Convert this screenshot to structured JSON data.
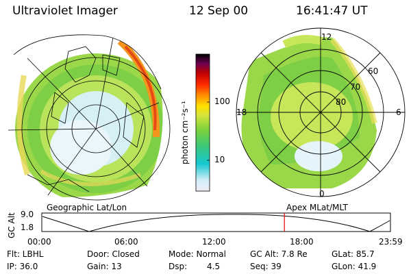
{
  "header": {
    "instrument": "Ultraviolet Imager",
    "date": "12 Sep 00",
    "time": "16:41:47 UT"
  },
  "colorbar": {
    "label": "photon cm⁻²s⁻¹",
    "ticks": [
      "100",
      "10"
    ],
    "colors": [
      "#e6e6f0",
      "#d8f0f8",
      "#00c8d0",
      "#3cc878",
      "#7ad23c",
      "#c8e63c",
      "#ffe600",
      "#ff8c00",
      "#ff2800",
      "#c80000",
      "#780050",
      "#000000"
    ]
  },
  "left_map": {
    "caption": "Geographic Lat/Lon"
  },
  "right_map": {
    "caption": "Apex  MLat/MLT",
    "lat_labels": [
      "60",
      "70",
      "80"
    ],
    "mlt_labels": [
      "12",
      "18",
      "6",
      "0"
    ]
  },
  "altitude_plot": {
    "ylabel": "GC Alt",
    "y_ticks": [
      "9.0",
      "1.8"
    ],
    "x_ticks": [
      "00:00",
      "06:00",
      "12:00",
      "18:00",
      "23:59"
    ],
    "marker_time_hours": 16.7,
    "marker_color": "#e00000"
  },
  "footer": {
    "row1": {
      "flt": "Flt: LBHL",
      "door": "Door: Closed",
      "mode": "Mode: Normal",
      "gc_alt": "GC Alt: 7.8 Re",
      "glat": "GLat:  85.7"
    },
    "row2": {
      "ip": "IP: 36.0",
      "gain": "Gain: 13",
      "dsp_label": "Dsp:",
      "dsp_value": "4.5",
      "seq": "Seq: 39",
      "glon": "GLon:  41.9"
    }
  }
}
